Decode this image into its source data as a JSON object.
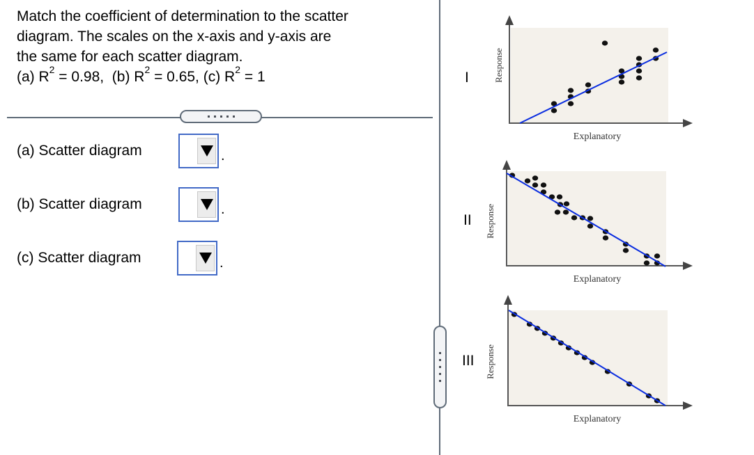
{
  "question": {
    "lines": [
      "Match the coefficient of determination to the scatter",
      "diagram. The scales on the x-axis and y-axis are",
      "the same for each scatter diagram."
    ],
    "formula": {
      "a_prefix": "(a) R",
      "a_value": " = 0.98,  ",
      "b_prefix": "(b) R",
      "b_value": " = 0.65, ",
      "c_prefix": "(c) R",
      "c_value": " = 1",
      "exponent": "2"
    }
  },
  "answers": [
    {
      "label": "(a) Scatter diagram",
      "selected": "",
      "period": "."
    },
    {
      "label": "(b) Scatter diagram",
      "selected": "",
      "period": "."
    },
    {
      "label": "(c) Scatter diagram",
      "selected": "",
      "period": "."
    }
  ],
  "icons": {
    "dropdown": "triangle-down-icon",
    "splitter": "drag-handle-dots-icon"
  },
  "colors": {
    "regression_line": "#0a2de0",
    "plot_background": "#f4f1eb",
    "dropdown_border": "#4169c6",
    "divider": "#5f6b78"
  },
  "chart_data": [
    {
      "type": "scatter",
      "id": "I",
      "title": "I",
      "xlabel": "Explanatory",
      "ylabel": "Response",
      "trend": "positive",
      "points": [
        [
          795,
          149
        ],
        [
          795,
          159
        ],
        [
          819,
          130
        ],
        [
          819,
          139
        ],
        [
          819,
          149
        ],
        [
          844,
          122
        ],
        [
          844,
          131
        ],
        [
          868,
          62
        ],
        [
          892,
          102
        ],
        [
          892,
          110
        ],
        [
          892,
          118
        ],
        [
          917,
          84
        ],
        [
          917,
          93
        ],
        [
          917,
          102
        ],
        [
          917,
          112
        ],
        [
          941,
          72
        ],
        [
          941,
          84
        ]
      ],
      "line": [
        [
          746,
          177
        ],
        [
          957,
          75
        ]
      ]
    },
    {
      "type": "scatter",
      "id": "II",
      "title": "II",
      "xlabel": "Explanatory",
      "ylabel": "Response",
      "trend": "negative",
      "points": [
        [
          735,
          252
        ],
        [
          757,
          260
        ],
        [
          768,
          256
        ],
        [
          768,
          266
        ],
        [
          780,
          266
        ],
        [
          780,
          276
        ],
        [
          792,
          283
        ],
        [
          803,
          283
        ],
        [
          804,
          294
        ],
        [
          813,
          293
        ],
        [
          800,
          305
        ],
        [
          812,
          305
        ],
        [
          824,
          313
        ],
        [
          836,
          313
        ],
        [
          847,
          314
        ],
        [
          847,
          325
        ],
        [
          869,
          333
        ],
        [
          869,
          342
        ],
        [
          898,
          351
        ],
        [
          898,
          360
        ],
        [
          928,
          368
        ],
        [
          928,
          378
        ],
        [
          943,
          368
        ],
        [
          943,
          378
        ]
      ],
      "line": [
        [
          727,
          249
        ],
        [
          955,
          383
        ]
      ]
    },
    {
      "type": "scatter",
      "id": "III",
      "title": "III",
      "xlabel": "Explanatory",
      "ylabel": "Response",
      "trend": "negative-perfect",
      "points": [
        [
          738,
          452
        ],
        [
          760,
          466
        ],
        [
          771,
          472
        ],
        [
          782,
          479
        ],
        [
          794,
          486
        ],
        [
          805,
          493
        ],
        [
          816,
          500
        ],
        [
          828,
          507
        ],
        [
          839,
          514
        ],
        [
          850,
          521
        ],
        [
          872,
          534
        ],
        [
          903,
          552
        ],
        [
          931,
          569
        ],
        [
          943,
          576
        ]
      ],
      "line": [
        [
          730,
          446
        ],
        [
          955,
          583
        ]
      ]
    }
  ]
}
